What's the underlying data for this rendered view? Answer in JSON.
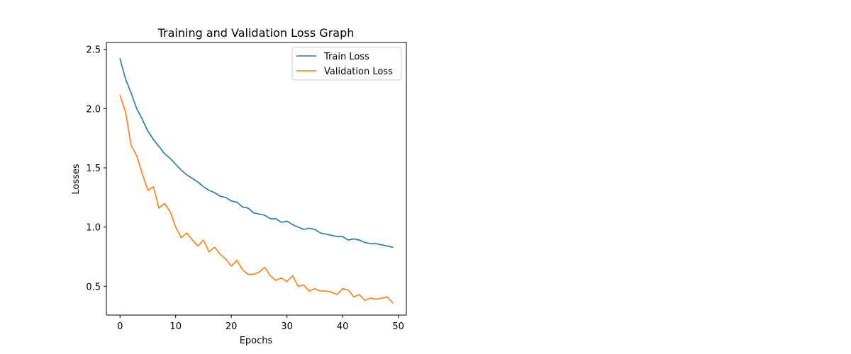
{
  "chart_data": {
    "type": "line",
    "title": "Training and Validation Loss Graph",
    "xlabel": "Epochs",
    "ylabel": "Losses",
    "xlim": [
      -2.45,
      51.45
    ],
    "ylim": [
      0.257,
      2.558
    ],
    "xticks": [
      0,
      10,
      20,
      30,
      40,
      50
    ],
    "yticks": [
      0.5,
      1.0,
      1.5,
      2.0,
      2.5
    ],
    "xtick_labels": [
      "0",
      "10",
      "20",
      "30",
      "40",
      "50"
    ],
    "ytick_labels": [
      "0.5",
      "1.0",
      "1.5",
      "2.0",
      "2.5"
    ],
    "grid": false,
    "legend_position": "top-right",
    "x": [
      0,
      1,
      2,
      3,
      4,
      5,
      6,
      7,
      8,
      9,
      10,
      11,
      12,
      13,
      14,
      15,
      16,
      17,
      18,
      19,
      20,
      21,
      22,
      23,
      24,
      25,
      26,
      27,
      28,
      29,
      30,
      31,
      32,
      33,
      34,
      35,
      36,
      37,
      38,
      39,
      40,
      41,
      42,
      43,
      44,
      45,
      46,
      47,
      48,
      49
    ],
    "series": [
      {
        "name": "Train Loss",
        "color": "#1f77b4",
        "values": [
          2.42,
          2.25,
          2.13,
          2.0,
          1.91,
          1.81,
          1.74,
          1.68,
          1.62,
          1.58,
          1.53,
          1.48,
          1.44,
          1.41,
          1.38,
          1.34,
          1.31,
          1.29,
          1.26,
          1.25,
          1.22,
          1.21,
          1.17,
          1.16,
          1.12,
          1.11,
          1.1,
          1.07,
          1.07,
          1.04,
          1.05,
          1.02,
          1.0,
          0.98,
          0.99,
          0.98,
          0.95,
          0.94,
          0.93,
          0.92,
          0.92,
          0.89,
          0.9,
          0.89,
          0.87,
          0.86,
          0.86,
          0.85,
          0.84,
          0.83
        ]
      },
      {
        "name": "Validation Loss",
        "color": "#ff7f0e",
        "values": [
          2.11,
          1.97,
          1.69,
          1.6,
          1.45,
          1.31,
          1.34,
          1.16,
          1.2,
          1.13,
          1.0,
          0.91,
          0.95,
          0.89,
          0.84,
          0.89,
          0.79,
          0.83,
          0.77,
          0.73,
          0.67,
          0.72,
          0.64,
          0.6,
          0.6,
          0.62,
          0.66,
          0.59,
          0.55,
          0.57,
          0.54,
          0.59,
          0.5,
          0.51,
          0.46,
          0.48,
          0.46,
          0.46,
          0.45,
          0.43,
          0.48,
          0.47,
          0.41,
          0.43,
          0.38,
          0.4,
          0.39,
          0.4,
          0.41,
          0.36
        ]
      }
    ]
  }
}
